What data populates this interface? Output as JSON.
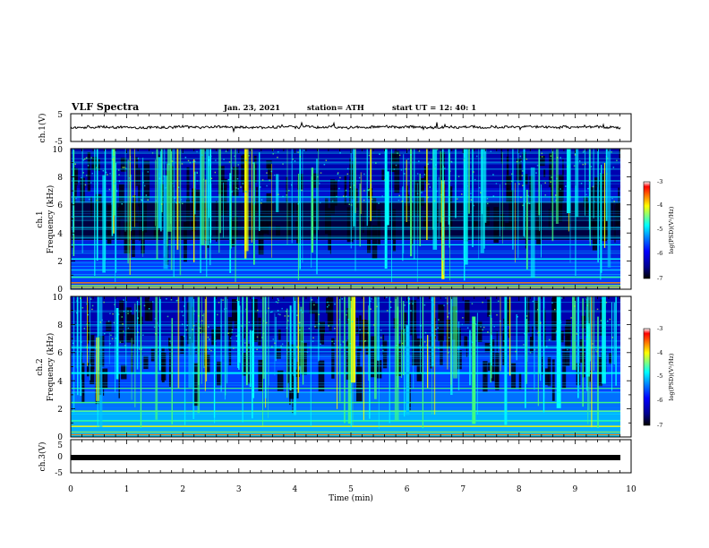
{
  "header": {
    "title": "VLF Spectra",
    "date": "Jan. 23, 2021",
    "station": "station= ATH",
    "start": "start  UT =    12: 40: 1"
  },
  "chart_data": [
    {
      "type": "line",
      "panel": "ch1-waveform",
      "ylabel": "ch.1(V)",
      "ylim": [
        -5,
        5
      ],
      "yticks": [
        "5",
        "-5"
      ],
      "xlim": [
        0,
        10
      ],
      "series": [
        {
          "values": [
            0,
            0.2,
            -0.3,
            0.4,
            -0.2,
            0.1,
            -0.5,
            0.3,
            0.0,
            -0.1,
            0.2,
            -0.4,
            0.3
          ]
        }
      ],
      "color": "#000000"
    },
    {
      "type": "heatmap",
      "panel": "ch1-spectrogram",
      "ylabel": "ch.1\nFrequency (kHz)",
      "ylim": [
        0,
        10
      ],
      "yticks": [
        "0",
        "2",
        "4",
        "6",
        "8",
        "10"
      ],
      "xlim": [
        0,
        10
      ],
      "colorbar": {
        "label": "log(PSD)(V²/Hz)",
        "range": [
          -7,
          -3
        ],
        "ticks": [
          "-3",
          "-4",
          "-5",
          "-6",
          "-7"
        ]
      }
    },
    {
      "type": "heatmap",
      "panel": "ch2-spectrogram",
      "ylabel": "ch.2\nFrequency (kHz)",
      "ylim": [
        0,
        10
      ],
      "yticks": [
        "0",
        "2",
        "4",
        "6",
        "8",
        "10"
      ],
      "xlim": [
        0,
        10
      ],
      "colorbar": {
        "label": "log(PSD)(V²/Hz)",
        "range": [
          -7,
          -3
        ],
        "ticks": [
          "-3",
          "-4",
          "-5",
          "-6",
          "-7"
        ]
      }
    },
    {
      "type": "line",
      "panel": "ch3-waveform",
      "ylabel": "ch.3(V)",
      "ylim": [
        -5,
        5
      ],
      "yticks": [
        "5",
        "0",
        "-5"
      ],
      "xlim": [
        0,
        10
      ],
      "series": [
        {
          "values": [
            -0.5,
            -0.5
          ]
        }
      ],
      "color": "#000000"
    }
  ],
  "x_axis": {
    "label": "Time  (min)",
    "ticks": [
      "0",
      "1",
      "2",
      "3",
      "4",
      "5",
      "6",
      "7",
      "8",
      "9",
      "10"
    ]
  },
  "colors": {
    "colormap": [
      "#000000",
      "#00007f",
      "#0000ff",
      "#007fff",
      "#00ffff",
      "#7fff7f",
      "#ffff00",
      "#ff7f00",
      "#ff0000",
      "#ffffff"
    ]
  }
}
